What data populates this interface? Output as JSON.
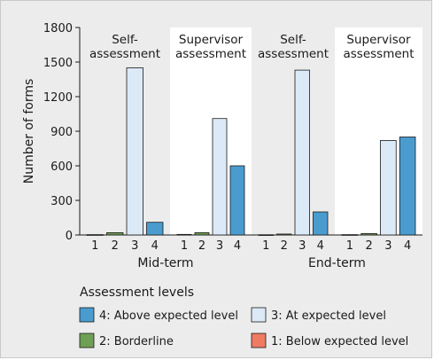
{
  "chart_data": {
    "type": "bar",
    "ylabel": "Number of forms",
    "ylim": [
      0,
      1800
    ],
    "yticks": [
      "0",
      "300",
      "600",
      "900",
      "1200",
      "1500",
      "1800"
    ],
    "categories": [
      "1",
      "2",
      "3",
      "4"
    ],
    "groups": [
      {
        "label": "Mid-term",
        "panels": [
          {
            "title_lines": [
              "Self-",
              "assessment"
            ],
            "background": "#ececec",
            "values": [
              3,
              20,
              1450,
              110
            ]
          },
          {
            "title_lines": [
              "Supervisor",
              "assessment"
            ],
            "background": "#ffffff",
            "values": [
              5,
              20,
              1010,
              600
            ]
          }
        ]
      },
      {
        "label": "End-term",
        "panels": [
          {
            "title_lines": [
              "Self-",
              "assessment"
            ],
            "background": "#ececec",
            "values": [
              2,
              8,
              1430,
              200
            ]
          },
          {
            "title_lines": [
              "Supervisor",
              "assessment"
            ],
            "background": "#ffffff",
            "values": [
              3,
              12,
              820,
              850
            ]
          }
        ]
      }
    ],
    "legend": {
      "title": "Assessment levels",
      "items": [
        {
          "level": "4",
          "label": "4: Above expected level",
          "color": "#4a9ccf"
        },
        {
          "level": "3",
          "label": "3: At expected level",
          "color": "#dce9f7"
        },
        {
          "level": "2",
          "label": "2: Borderline",
          "color": "#6f9f54"
        },
        {
          "level": "1",
          "label": "1: Below expected level",
          "color": "#f07b63"
        }
      ]
    }
  }
}
